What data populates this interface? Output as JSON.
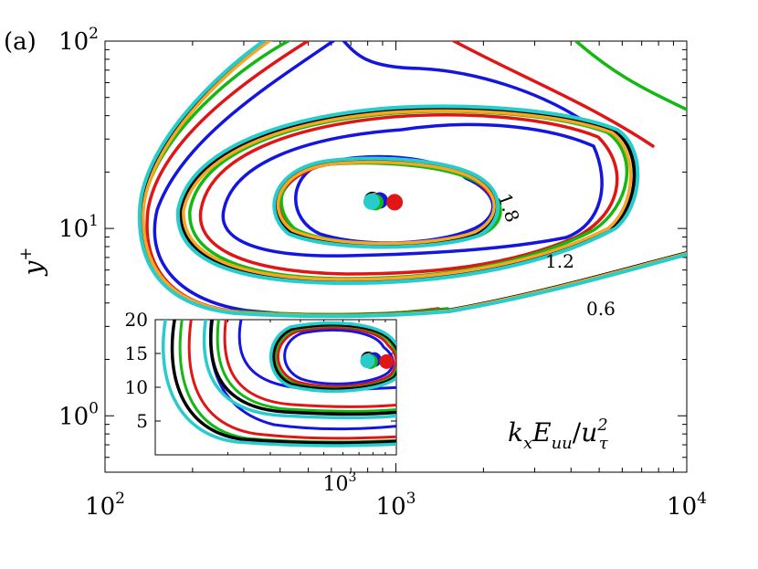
{
  "chart_data": {
    "type": "contour",
    "panel_label": "(a)",
    "annotation": "k_x E_uu / u_τ^2",
    "xscale": "log",
    "yscale": "log",
    "xlim": [
      100,
      10000
    ],
    "ylim": [
      0.5,
      100
    ],
    "grid": false,
    "x_tick_labels": [
      {
        "value": 100,
        "base": "10",
        "exp": "2"
      },
      {
        "value": 1000,
        "base": "10",
        "exp": "3"
      },
      {
        "value": 10000,
        "base": "10",
        "exp": "4"
      }
    ],
    "y_tick_labels": [
      {
        "value": 1,
        "base": "10",
        "exp": "0"
      },
      {
        "value": 10,
        "base": "10",
        "exp": "1"
      },
      {
        "value": 100,
        "base": "10",
        "exp": "2"
      }
    ],
    "ylabel_base": "y",
    "ylabel_sup": "+",
    "contour_levels": [
      {
        "label": "0.6",
        "x": 3300,
        "y": 3.0
      },
      {
        "label": "1.2",
        "x": 2450,
        "y": 6.2
      },
      {
        "label": "1.8",
        "x": 1200,
        "y": 12.0
      }
    ],
    "series_colors": {
      "black": "#000000",
      "orange": "#f5a623",
      "blue": "#1515e0",
      "red": "#e01515",
      "green": "#13b813",
      "cyan": "#29cccc"
    },
    "peak_markers": [
      {
        "color": "#000000",
        "x": 830,
        "y": 14.2
      },
      {
        "color": "#f5a623",
        "x": 845,
        "y": 14.0
      },
      {
        "color": "#1515e0",
        "x": 880,
        "y": 14.1
      },
      {
        "color": "#e01515",
        "x": 990,
        "y": 13.8
      },
      {
        "color": "#13b813",
        "x": 850,
        "y": 13.8
      },
      {
        "color": "#29cccc",
        "x": 825,
        "y": 13.9
      }
    ],
    "inset": {
      "xscale": "log",
      "yscale": "linear",
      "xlim": [
        100,
        1000
      ],
      "ylim": [
        0,
        20
      ],
      "y_ticks": [
        5,
        10,
        15,
        20
      ],
      "x_tick_labels": [
        {
          "value": 1000,
          "base": "10",
          "exp": "3"
        }
      ]
    }
  }
}
